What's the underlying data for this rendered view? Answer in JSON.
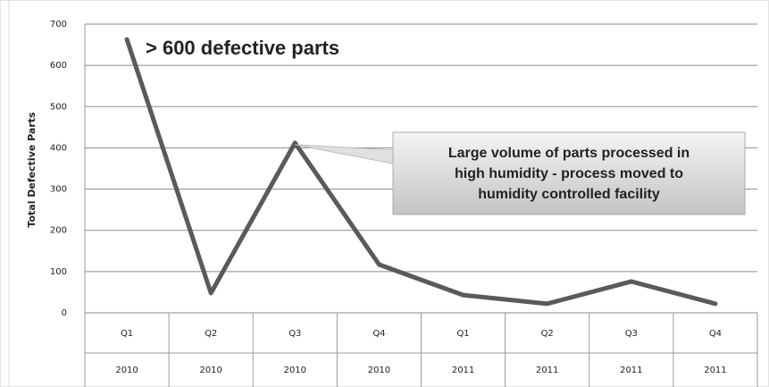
{
  "chart_data": {
    "type": "line",
    "y_label": "Total Defective Parts",
    "categories": [
      "Q1",
      "Q2",
      "Q3",
      "Q4",
      "Q1",
      "Q2",
      "Q3",
      "Q4"
    ],
    "category_years": [
      "2010",
      "2010",
      "2010",
      "2010",
      "2011",
      "2011",
      "2011",
      "2011"
    ],
    "values": [
      663,
      48,
      412,
      117,
      43,
      22,
      76,
      22
    ],
    "color": "#5a5a5a",
    "ylim": [
      0,
      700
    ],
    "yticks": [
      0,
      100,
      200,
      300,
      400,
      500,
      600,
      700
    ],
    "grid": true,
    "annotations": [
      {
        "text": "> 600 defective parts",
        "color": "#ee0000"
      },
      {
        "lines": [
          "Large volume of parts processed in",
          "high humidity - process moved to",
          "humidity controlled facility"
        ]
      }
    ]
  }
}
